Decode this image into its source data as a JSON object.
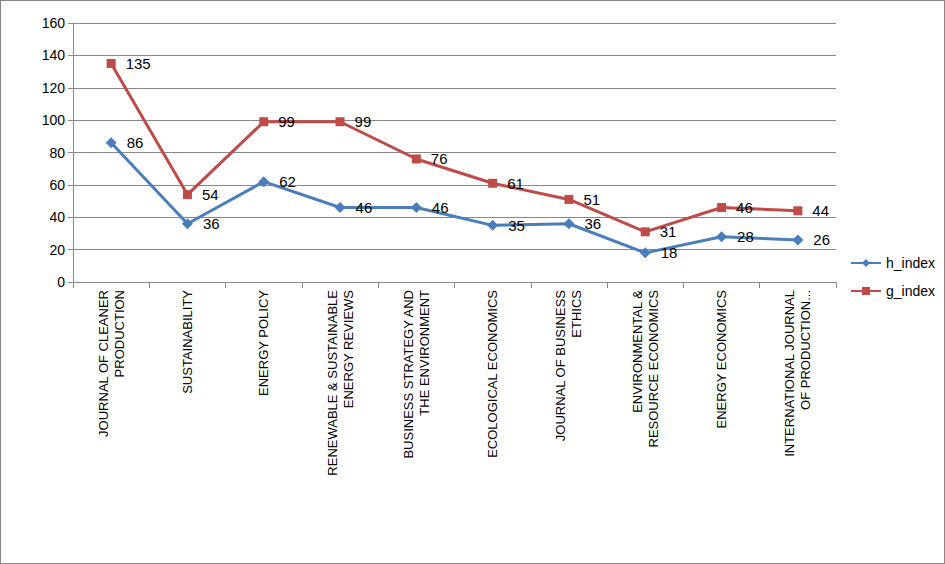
{
  "chart_data": {
    "type": "line",
    "categories": [
      "JOURNAL OF CLEANER PRODUCTION",
      "SUSTAINABILITY",
      "ENERGY POLICY",
      "RENEWABLE & SUSTAINABLE ENERGY REVIEWS",
      "BUSINESS STRATEGY AND THE ENVIRONMENT",
      "ECOLOGICAL ECONOMICS",
      "JOURNAL OF BUSINESS ETHICS",
      "ENVIRONMENTAL & RESOURCE ECONOMICS",
      "ENERGY ECONOMICS",
      "INTERNATIONAL JOURNAL OF PRODUCTION..."
    ],
    "series": [
      {
        "name": "h_index",
        "color": "#4a7ebb",
        "marker": "diamond",
        "line_style": "solid",
        "values": [
          86,
          36,
          62,
          46,
          46,
          35,
          36,
          18,
          28,
          26
        ]
      },
      {
        "name": "g_index",
        "color": "#be4b48",
        "marker": "square",
        "line_style": "solid",
        "values": [
          135,
          54,
          99,
          99,
          76,
          61,
          51,
          31,
          46,
          44
        ]
      }
    ],
    "ylim": [
      0,
      160
    ],
    "yticks": [
      0,
      20,
      40,
      60,
      80,
      100,
      120,
      140,
      160
    ],
    "grid": true,
    "legend": "right",
    "data_labels": true
  }
}
